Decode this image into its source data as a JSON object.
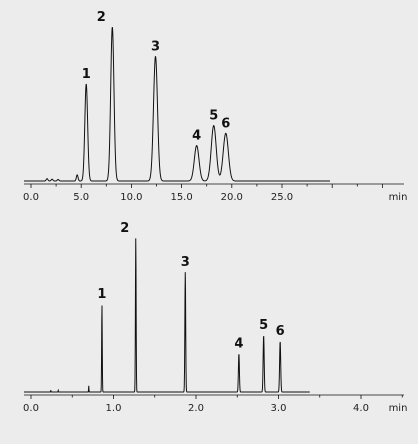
{
  "chart_data": [
    {
      "type": "line",
      "title": "",
      "xlabel": "",
      "ylabel": "",
      "x_unit_label": "min",
      "xlim": [
        -0.8,
        30
      ],
      "ylim": [
        0,
        1.0
      ],
      "x_ticks": [
        0.0,
        5.0,
        10.0,
        15.0,
        20.0,
        25.0
      ],
      "x_tick_labels": [
        "0.0",
        "5.0",
        "10.0",
        "15.0",
        "20.0",
        "25.0"
      ],
      "grid": false,
      "baseline_end": 29.8,
      "peaks": [
        {
          "label": "1",
          "x": 5.5,
          "height": 0.63
        },
        {
          "label": "2",
          "x": 8.1,
          "height": 1.0
        },
        {
          "label": "3",
          "x": 12.4,
          "height": 0.81
        },
        {
          "label": "4",
          "x": 16.5,
          "height": 0.23
        },
        {
          "label": "5",
          "x": 18.2,
          "height": 0.36
        },
        {
          "label": "6",
          "x": 19.4,
          "height": 0.31
        }
      ],
      "minor_peaks": [
        {
          "x": 1.6,
          "height": 0.015
        },
        {
          "x": 2.1,
          "height": 0.012
        },
        {
          "x": 2.7,
          "height": 0.01
        },
        {
          "x": 4.6,
          "height": 0.04
        }
      ]
    },
    {
      "type": "line",
      "title": "",
      "xlabel": "",
      "ylabel": "",
      "x_unit_label": "min",
      "xlim": [
        -0.12,
        4.9
      ],
      "ylim": [
        0,
        1.0
      ],
      "x_ticks": [
        0.0,
        1.0,
        2.0,
        3.0,
        4.0
      ],
      "x_tick_labels": [
        "0.0",
        "1.0",
        "2.0",
        "3.0",
        "4.0"
      ],
      "grid": false,
      "baseline_end": 3.38,
      "peaks": [
        {
          "label": "1",
          "x": 0.86,
          "height": 0.57
        },
        {
          "label": "2",
          "x": 1.27,
          "height": 1.0
        },
        {
          "label": "3",
          "x": 1.87,
          "height": 0.78
        },
        {
          "label": "4",
          "x": 2.52,
          "height": 0.25
        },
        {
          "label": "5",
          "x": 2.82,
          "height": 0.37
        },
        {
          "label": "6",
          "x": 3.02,
          "height": 0.33
        }
      ],
      "minor_peaks": [
        {
          "x": 0.24,
          "height": 0.012
        },
        {
          "x": 0.33,
          "height": 0.01
        },
        {
          "x": 0.7,
          "height": 0.04
        }
      ]
    }
  ]
}
